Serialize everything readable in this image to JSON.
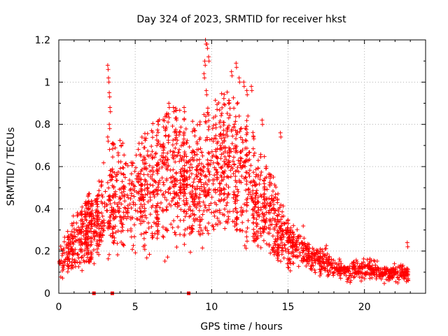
{
  "chart_data": {
    "type": "scatter",
    "title": "Day 324 of 2023, SRMTID for receiver hkst",
    "xlabel": "GPS time / hours",
    "ylabel": "SRMTID / TECUs",
    "xlim": [
      0,
      24
    ],
    "ylim": [
      0,
      1.2
    ],
    "xticks": [
      0,
      5,
      10,
      15,
      20
    ],
    "xtick_labels": [
      "0",
      "5",
      "10",
      "15",
      "20"
    ],
    "yticks": [
      0,
      0.2,
      0.4,
      0.6,
      0.8,
      1,
      1.2
    ],
    "ytick_labels": [
      "0",
      "0.2",
      "0.4",
      "0.6",
      "0.8",
      "1",
      "1.2"
    ],
    "grid": true,
    "marker": "+",
    "series": [
      {
        "name": "SRMTID",
        "color": "#ff0000",
        "envelope": [
          {
            "x": 0.0,
            "y": 0.14
          },
          {
            "x": 0.5,
            "y": 0.18
          },
          {
            "x": 1.0,
            "y": 0.22
          },
          {
            "x": 1.5,
            "y": 0.26
          },
          {
            "x": 2.0,
            "y": 0.3
          },
          {
            "x": 2.5,
            "y": 0.32
          },
          {
            "x": 3.0,
            "y": 0.38
          },
          {
            "x": 3.5,
            "y": 0.45
          },
          {
            "x": 4.0,
            "y": 0.45
          },
          {
            "x": 4.5,
            "y": 0.44
          },
          {
            "x": 5.0,
            "y": 0.46
          },
          {
            "x": 5.5,
            "y": 0.48
          },
          {
            "x": 6.0,
            "y": 0.5
          },
          {
            "x": 6.5,
            "y": 0.52
          },
          {
            "x": 7.0,
            "y": 0.54
          },
          {
            "x": 7.5,
            "y": 0.55
          },
          {
            "x": 8.0,
            "y": 0.55
          },
          {
            "x": 8.5,
            "y": 0.52
          },
          {
            "x": 9.0,
            "y": 0.5
          },
          {
            "x": 9.5,
            "y": 0.53
          },
          {
            "x": 10.0,
            "y": 0.58
          },
          {
            "x": 10.5,
            "y": 0.6
          },
          {
            "x": 11.0,
            "y": 0.6
          },
          {
            "x": 11.5,
            "y": 0.58
          },
          {
            "x": 12.0,
            "y": 0.55
          },
          {
            "x": 12.5,
            "y": 0.5
          },
          {
            "x": 13.0,
            "y": 0.45
          },
          {
            "x": 13.5,
            "y": 0.4
          },
          {
            "x": 14.0,
            "y": 0.35
          },
          {
            "x": 14.5,
            "y": 0.28
          },
          {
            "x": 15.0,
            "y": 0.24
          },
          {
            "x": 15.5,
            "y": 0.22
          },
          {
            "x": 16.0,
            "y": 0.2
          },
          {
            "x": 16.5,
            "y": 0.17
          },
          {
            "x": 17.0,
            "y": 0.16
          },
          {
            "x": 17.5,
            "y": 0.15
          },
          {
            "x": 18.0,
            "y": 0.12
          },
          {
            "x": 18.5,
            "y": 0.11
          },
          {
            "x": 19.0,
            "y": 0.1
          },
          {
            "x": 19.5,
            "y": 0.11
          },
          {
            "x": 20.0,
            "y": 0.12
          },
          {
            "x": 20.5,
            "y": 0.11
          },
          {
            "x": 21.0,
            "y": 0.1
          },
          {
            "x": 21.5,
            "y": 0.09
          },
          {
            "x": 22.0,
            "y": 0.09
          },
          {
            "x": 22.5,
            "y": 0.1
          },
          {
            "x": 22.9,
            "y": 0.08
          }
        ],
        "peaks": [
          {
            "x": 3.2,
            "y": 1.08
          },
          {
            "x": 3.25,
            "y": 1.02
          },
          {
            "x": 3.3,
            "y": 0.95
          },
          {
            "x": 3.35,
            "y": 0.88
          },
          {
            "x": 3.3,
            "y": 0.8
          },
          {
            "x": 3.2,
            "y": 0.74
          },
          {
            "x": 7.2,
            "y": 0.9
          },
          {
            "x": 7.5,
            "y": 0.88
          },
          {
            "x": 8.2,
            "y": 0.88
          },
          {
            "x": 9.5,
            "y": 1.04
          },
          {
            "x": 9.55,
            "y": 1.1
          },
          {
            "x": 9.6,
            "y": 1.2
          },
          {
            "x": 9.7,
            "y": 1.18
          },
          {
            "x": 9.8,
            "y": 1.12
          },
          {
            "x": 9.65,
            "y": 0.96
          },
          {
            "x": 11.3,
            "y": 1.05
          },
          {
            "x": 11.6,
            "y": 1.09
          },
          {
            "x": 11.8,
            "y": 1.02
          },
          {
            "x": 12.1,
            "y": 1.0
          },
          {
            "x": 12.3,
            "y": 0.96
          },
          {
            "x": 12.6,
            "y": 0.98
          },
          {
            "x": 13.3,
            "y": 0.82
          },
          {
            "x": 14.5,
            "y": 0.76
          },
          {
            "x": 22.8,
            "y": 0.24
          }
        ],
        "zero_markers": [
          {
            "x": 2.3,
            "y": 0
          },
          {
            "x": 3.5,
            "y": 0
          },
          {
            "x": 8.5,
            "y": 0
          }
        ]
      }
    ]
  }
}
